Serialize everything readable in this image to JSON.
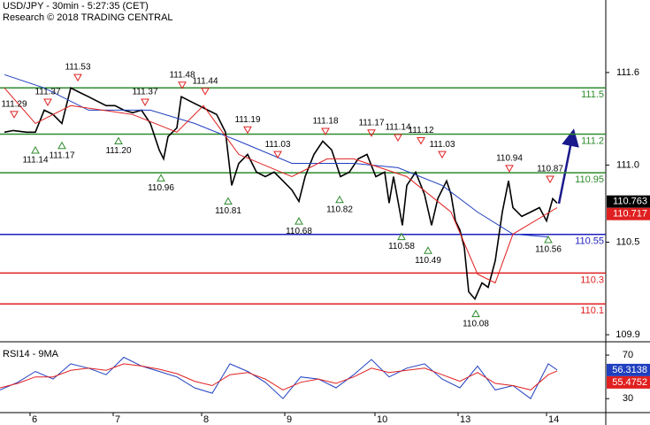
{
  "chart_data": [
    {
      "type": "line",
      "title": "USD/JPY - 30min - 5:27:35 (CET)",
      "subtitle": "Research © 2018 TRADING CENTRAL",
      "xlim": [
        0,
        342.5
      ],
      "ylim": [
        109.86,
        112.07
      ],
      "yticks": [
        111.6,
        {
          "value": 111,
          "label": "111.0"
        },
        110.5,
        109.9
      ],
      "series": [
        {
          "color": "#000000",
          "width": 1.6,
          "x": [
            2.5,
            7.5,
            15,
            20,
            25,
            30,
            35,
            40,
            45,
            50,
            55,
            60,
            65,
            70,
            75,
            80,
            85,
            90,
            92.5,
            95,
            100,
            102.5,
            107.5,
            112.5,
            117.5,
            122.5,
            127.5,
            131,
            135,
            140,
            145,
            150,
            155,
            160,
            165,
            169,
            172.5,
            177.5,
            182.5,
            187.5,
            192.5,
            197.5,
            202.5,
            207.5,
            212.5,
            217.5,
            220,
            222.5,
            227.5,
            230,
            235,
            240,
            244,
            247.5,
            252.5,
            255,
            257.5,
            260,
            262.5,
            265,
            268.5,
            272.5,
            276,
            280,
            284,
            287.5,
            290,
            295,
            300,
            305,
            309,
            312.5,
            315
          ],
          "values": [
            111.213,
            111.224,
            111.213,
            111.213,
            111.356,
            111.328,
            111.27,
            111.5,
            111.471,
            111.443,
            111.414,
            111.385,
            111.385,
            111.356,
            111.339,
            111.356,
            111.27,
            111.098,
            111.04,
            111.184,
            111.241,
            111.443,
            111.414,
            111.385,
            111.356,
            111.328,
            111.213,
            110.868,
            111.011,
            111.069,
            110.954,
            110.925,
            110.954,
            110.897,
            110.839,
            110.764,
            110.925,
            111.069,
            111.155,
            111.098,
            110.925,
            110.954,
            111.04,
            111.069,
            110.925,
            110.954,
            110.753,
            110.925,
            110.609,
            110.868,
            110.954,
            110.81,
            110.609,
            110.782,
            110.897,
            110.81,
            110.638,
            110.58,
            110.466,
            110.178,
            110.132,
            110.236,
            110.207,
            110.379,
            110.695,
            110.897,
            110.724,
            110.667,
            110.695,
            110.724,
            110.638,
            110.782,
            110.753
          ]
        },
        {
          "color": "#1f3fbf",
          "width": 1,
          "x": [
            2.5,
            25,
            50,
            85,
            110,
            135,
            165,
            200,
            225,
            250,
            270,
            290,
            310
          ],
          "values": [
            111.586,
            111.5,
            111.356,
            111.356,
            111.27,
            111.155,
            111.011,
            111.011,
            110.983,
            110.868,
            110.695,
            110.552,
            110.534
          ]
        },
        {
          "color": "#e02020",
          "width": 1,
          "x": [
            2.5,
            20,
            40,
            75,
            100,
            115,
            135,
            165,
            185,
            200,
            230,
            255,
            270,
            280,
            290,
            315
          ],
          "values": [
            111.5,
            111.27,
            111.385,
            111.328,
            111.213,
            111.385,
            111.069,
            110.925,
            111.04,
            111.04,
            110.925,
            110.695,
            110.293,
            110.236,
            110.552,
            110.724
          ]
        }
      ],
      "levels": [
        {
          "value": 111.5,
          "color": "#2e8b2e"
        },
        {
          "value": 111.2,
          "color": "#2e8b2e"
        },
        {
          "value": 110.95,
          "color": "#2e8b2e"
        },
        {
          "value": 110.55,
          "color": "#1f1fbf"
        },
        {
          "value": 110.3,
          "color": "#e02020"
        },
        {
          "value": 110.1,
          "color": "#e02020"
        }
      ],
      "highs": [
        {
          "x": 8,
          "value": 111.29,
          "label": "111.29"
        },
        {
          "x": 27,
          "value": 111.37,
          "label": "111.37"
        },
        {
          "x": 44,
          "value": 111.53,
          "label": "111.53"
        },
        {
          "x": 82,
          "value": 111.37,
          "label": "111.37"
        },
        {
          "x": 103,
          "value": 111.48,
          "label": "111.48"
        },
        {
          "x": 116,
          "value": 111.44,
          "label": "111.44"
        },
        {
          "x": 140,
          "value": 111.19,
          "label": "111.19"
        },
        {
          "x": 157,
          "value": 111.03,
          "label": "111.03"
        },
        {
          "x": 184,
          "value": 111.18,
          "label": "111.18"
        },
        {
          "x": 210,
          "value": 111.17,
          "label": "111.17"
        },
        {
          "x": 225,
          "value": 111.14,
          "label": "111.14"
        },
        {
          "x": 238,
          "value": 111.12,
          "label": "111.12"
        },
        {
          "x": 250,
          "value": 111.03,
          "label": "111.03"
        },
        {
          "x": 288,
          "value": 110.94,
          "label": "110.94"
        },
        {
          "x": 311,
          "value": 110.87,
          "label": "110.87"
        }
      ],
      "lows": [
        {
          "x": 20,
          "value": 111.14,
          "label": "111.14"
        },
        {
          "x": 35,
          "value": 111.17,
          "label": "111.17"
        },
        {
          "x": 67,
          "value": 111.2,
          "label": "111.20"
        },
        {
          "x": 91,
          "value": 110.96,
          "label": "110.96"
        },
        {
          "x": 129,
          "value": 110.81,
          "label": "110.81"
        },
        {
          "x": 169,
          "value": 110.68,
          "label": "110.68"
        },
        {
          "x": 192,
          "value": 110.82,
          "label": "110.82"
        },
        {
          "x": 227,
          "value": 110.58,
          "label": "110.58"
        },
        {
          "x": 242,
          "value": 110.49,
          "label": "110.49"
        },
        {
          "x": 269,
          "value": 110.08,
          "label": "110.08"
        },
        {
          "x": 310,
          "value": 110.56,
          "label": "110.56"
        }
      ],
      "last_values": [
        {
          "value": 110.763,
          "color": "#000000"
        },
        {
          "value": 110.717,
          "color": "#e02020"
        }
      ]
    },
    {
      "type": "line",
      "title": "RSI14 - 9MA",
      "xlim": [
        0,
        342.5
      ],
      "ylim": [
        18,
        79
      ],
      "yticks": [
        70,
        30
      ],
      "xticks": [
        {
          "value": 17,
          "label": "6"
        },
        {
          "value": 64,
          "label": "7"
        },
        {
          "value": 114,
          "label": "8"
        },
        {
          "value": 161,
          "label": "9"
        },
        {
          "value": 212,
          "label": "10"
        },
        {
          "value": 259,
          "label": "13"
        },
        {
          "value": 309,
          "label": "14"
        }
      ],
      "series": [
        {
          "color": "#1f3fbf",
          "width": 1,
          "x": [
            0,
            10,
            20,
            30,
            40,
            50,
            60,
            70,
            80,
            90,
            100,
            110,
            120,
            130,
            140,
            150,
            160,
            170,
            180,
            190,
            200,
            210,
            220,
            230,
            240,
            250,
            260,
            270,
            280,
            290,
            300,
            310,
            315
          ],
          "values": [
            38,
            45,
            55,
            48,
            62,
            58,
            52,
            68,
            60,
            55,
            50,
            40,
            35,
            62,
            55,
            45,
            30,
            50,
            48,
            40,
            52,
            66,
            50,
            58,
            62,
            48,
            40,
            60,
            38,
            42,
            30,
            62,
            56.3
          ]
        },
        {
          "color": "#e02020",
          "width": 1,
          "x": [
            0,
            10,
            20,
            30,
            40,
            50,
            60,
            70,
            80,
            90,
            100,
            110,
            120,
            130,
            140,
            150,
            160,
            170,
            180,
            190,
            200,
            210,
            220,
            230,
            240,
            250,
            260,
            270,
            280,
            290,
            300,
            310,
            315
          ],
          "values": [
            40,
            44,
            50,
            50,
            56,
            58,
            56,
            62,
            60,
            57,
            53,
            46,
            42,
            52,
            54,
            48,
            38,
            45,
            48,
            44,
            50,
            58,
            54,
            56,
            58,
            52,
            46,
            54,
            44,
            42,
            38,
            52,
            55.5
          ]
        }
      ],
      "last_values": [
        {
          "value": 56.3138,
          "color": "#1f3fbf"
        },
        {
          "value": 55.4752,
          "color": "#e02020"
        }
      ]
    }
  ]
}
